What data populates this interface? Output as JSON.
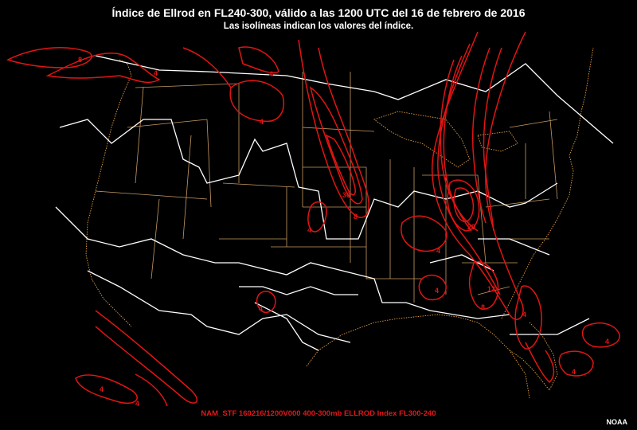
{
  "header": {
    "title": "Índice de Ellrod en FL240-300, válido a las 1200 UTC del 16 de febrero de 2016",
    "subtitle": "Las isolíneas indican los valores del índice."
  },
  "footer": {
    "model_line": "NAM_STF 160216/1200V000 400-300mb ELLROD Index FL300-240",
    "credit": "NOAA"
  },
  "colors": {
    "isoline": "#e31414",
    "region_boundary": "#ffffff",
    "state_boundary": "#c79a62",
    "coastline": "#e8a040",
    "background": "#000000"
  },
  "isoline_labels": [
    {
      "id": "nw-8",
      "text": "8"
    },
    {
      "id": "nw-4",
      "text": "4"
    },
    {
      "id": "mt-4",
      "text": "4"
    },
    {
      "id": "dak-4",
      "text": "4"
    },
    {
      "id": "neb-30",
      "text": "30"
    },
    {
      "id": "neb-8",
      "text": "8"
    },
    {
      "id": "ia-4",
      "text": "4"
    },
    {
      "id": "oh-20",
      "text": "20"
    },
    {
      "id": "oh-4",
      "text": "4"
    },
    {
      "id": "ms-4",
      "text": "4"
    },
    {
      "id": "ga-12",
      "text": "12"
    },
    {
      "id": "ga-8",
      "text": "8"
    },
    {
      "id": "fl-4",
      "text": "4"
    },
    {
      "id": "atl-4",
      "text": "4"
    },
    {
      "id": "tx-4",
      "text": "4"
    },
    {
      "id": "pac-4",
      "text": "4"
    },
    {
      "id": "pac2-4",
      "text": "4"
    },
    {
      "id": "bah-4",
      "text": "4"
    }
  ]
}
